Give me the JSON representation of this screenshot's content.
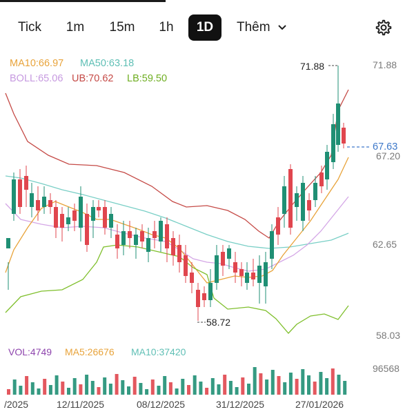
{
  "tabs": {
    "items": [
      {
        "label": "Tick",
        "active": false
      },
      {
        "label": "1m",
        "active": false
      },
      {
        "label": "15m",
        "active": false
      },
      {
        "label": "1h",
        "active": false
      },
      {
        "label": "1D",
        "active": true
      }
    ],
    "more_label": "Thêm"
  },
  "icons": {
    "more": "chevron-down-icon",
    "settings": "gear-icon"
  },
  "indicators": {
    "ma10": "MA10:66.97",
    "ma50": "MA50:63.18",
    "boll": "BOLL:65.06",
    "ub": "UB:70.62",
    "lb": "LB:59.50"
  },
  "volume_indicators": {
    "vol": "VOL:4749",
    "ma5": "MA5:26676",
    "ma10": "MA10:37420"
  },
  "colors": {
    "up": "#1f8f74",
    "down": "#e0464e",
    "ma10": "#e8a33a",
    "ma50": "#79cfc6",
    "boll": "#d4a6e6",
    "ub": "#c54a46",
    "lb": "#7fbf2c",
    "vol_label": "#8e44ad",
    "last_price": "#3d78c9"
  },
  "chart_data": {
    "type": "candlestick",
    "price_axis_ticks": [
      "71.88",
      "67.20",
      "62.65",
      "58.03"
    ],
    "volume_axis_tick": "96568",
    "date_ticks": [
      "/2025",
      "12/11/2025",
      "08/12/2025",
      "31/12/2025",
      "27/01/2026"
    ],
    "high_label": "71.88",
    "low_label": "58.72",
    "last_price": "67.63",
    "ylim": [
      58.03,
      71.88
    ]
  }
}
